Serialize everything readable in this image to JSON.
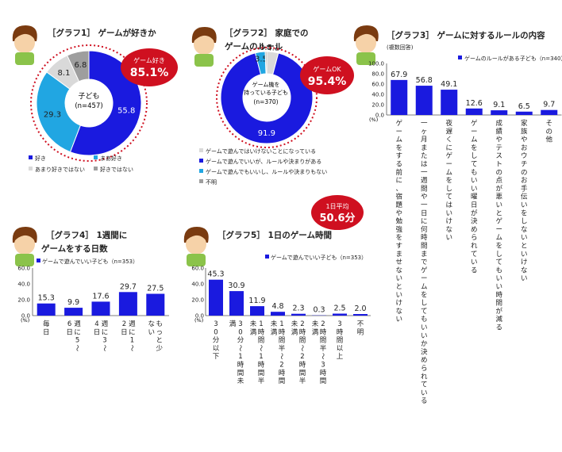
{
  "colors": {
    "blue": "#1a1adf",
    "cyan": "#21a6e2",
    "lightgray": "#d9d9d9",
    "gray": "#9e9e9e",
    "red": "#cf1020"
  },
  "g1": {
    "title": "［グラフ1］ ゲームが好きか",
    "center_label": "子ども",
    "center_n": "(n=457)",
    "badge_label": "ゲーム好き",
    "badge_value": "85.1%",
    "legend": [
      "好き",
      "まあ好き",
      "あまり好きではない",
      "好きではない"
    ]
  },
  "g2": {
    "title1": "［グラフ2］ 家庭での",
    "title2": "ゲームのルール",
    "center_l1": "ゲーム機を",
    "center_l2": "持っている子ども",
    "center_n": "(n=370)",
    "badge_label": "ゲームOK",
    "badge_value": "95.4%",
    "legend": [
      "ゲームで遊んではいけないことになっている",
      "ゲームで遊んでいいが、ルールや決まりがある",
      "ゲームで遊んでもいいし、ルールや決まりもない",
      "不明"
    ]
  },
  "g3": {
    "title": "［グラフ3］ ゲームに対するルールの内容",
    "subtitle": "(複数回答)",
    "legend": "ゲームのルールがある子ども（n=340）",
    "unit": "(%)"
  },
  "g4": {
    "title1": "［グラフ4］ 1週間に",
    "title2": "ゲームをする日数",
    "legend": "ゲームで遊んでいい子ども（n=353）",
    "unit": "(%)"
  },
  "g5": {
    "title": "［グラフ5］ 1日のゲーム時間",
    "legend": "ゲームで遊んでいい子ども（n=353）",
    "badge_label": "1日平均",
    "badge_value": "50.6分",
    "unit": "(%)"
  },
  "chart_data": [
    {
      "type": "pie",
      "id": "g1",
      "categories": [
        "好き",
        "まあ好き",
        "あまり好きではない",
        "好きではない"
      ],
      "values": [
        55.8,
        29.3,
        8.1,
        6.8
      ],
      "colors": [
        "#1a1adf",
        "#21a6e2",
        "#d9d9d9",
        "#9e9e9e"
      ]
    },
    {
      "type": "pie",
      "id": "g2",
      "categories": [
        "ゲームで遊んではいけないことになっている",
        "ゲームで遊んでいいが、ルールや決まりがある",
        "ゲームで遊んでもいいし、ルールや決まりもない",
        "不明"
      ],
      "values": [
        4.1,
        91.9,
        3.5,
        0.5
      ],
      "colors": [
        "#d9d9d9",
        "#1a1adf",
        "#21a6e2",
        "#9e9e9e"
      ]
    },
    {
      "type": "bar",
      "id": "g3",
      "categories": [
        "ゲームをする前に、宿題や勉強をすませないといけない",
        "一ヶ月または一週間や一日に何時間までゲームをしてもいいか決められている",
        "夜遅くにゲームをしてはいけない",
        "ゲームをしてもいい曜日が決められている",
        "成績やテストの点が悪いとゲームをしてもいい時間が減る",
        "家族やおウチのお手伝いをしないといけない",
        "その他"
      ],
      "values": [
        67.9,
        56.8,
        49.1,
        12.6,
        9.1,
        6.5,
        9.7
      ],
      "yticks": [
        "100.0",
        "80.0",
        "60.0",
        "40.0",
        "20.0",
        "0.0"
      ],
      "ylim": [
        0,
        100
      ]
    },
    {
      "type": "bar",
      "id": "g4",
      "categories": [
        "毎日",
        "週に5〜6日",
        "週に3〜4日",
        "週に1〜2日",
        "もっと少ない"
      ],
      "values": [
        15.3,
        9.9,
        17.6,
        29.7,
        27.5
      ],
      "yticks": [
        "60.0",
        "40.0",
        "20.0",
        "0.0"
      ],
      "ylim": [
        0,
        60
      ]
    },
    {
      "type": "bar",
      "id": "g5",
      "categories": [
        "30分以下",
        "30分〜1時間未満",
        "1時間〜1時間半未満",
        "1時間半〜2時間未満",
        "2時間〜2時間半未満",
        "2時間半〜3時間未満",
        "3時間以上",
        "不明"
      ],
      "values": [
        45.3,
        30.9,
        11.9,
        4.8,
        2.3,
        0.3,
        2.5,
        2.0
      ],
      "yticks": [
        "60.0",
        "40.0",
        "20.0",
        "0.0"
      ],
      "ylim": [
        0,
        60
      ]
    }
  ]
}
